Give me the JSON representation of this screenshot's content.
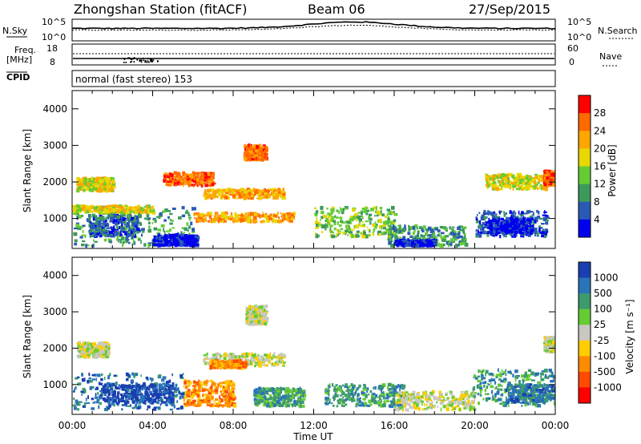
{
  "header": {
    "station": "Zhongshan Station (fitACF)",
    "beam": "Beam 06",
    "date": "27/Sep/2015",
    "mode": "normal (fast stereo) 153"
  },
  "top_panels": {
    "nsky_label": "N.Sky",
    "nsky_ticks": [
      "10^5",
      "10^0"
    ],
    "nsearch_label": "N.Search",
    "nsearch_ticks": [
      "10^5",
      "10^0"
    ],
    "freq_label_1": "Freq.",
    "freq_label_2": "[MHz]",
    "freq_ticks": [
      "18",
      "8"
    ],
    "nave_label": "Nave",
    "nave_ticks": [
      "60",
      "0"
    ],
    "cpid_label": "CPID"
  },
  "chart_data": [
    {
      "type": "heatmap",
      "panel": "power",
      "ylabel": "Slant Range [km]",
      "xlabel": "",
      "colorbar_label": "Power [dB]",
      "ylim": [
        180,
        4500
      ],
      "xlim": [
        0,
        24
      ],
      "yticks": [
        "1000",
        "2000",
        "3000",
        "4000"
      ],
      "colorbar_ticks": [
        "28",
        "24",
        "20",
        "16",
        "12",
        "8",
        "4"
      ],
      "colorbar_colors": [
        "#ff0000",
        "#ff6a00",
        "#ffa500",
        "#e8d800",
        "#66cc33",
        "#3c9a5c",
        "#2a5ab4",
        "#0000ee"
      ],
      "regions": [
        {
          "t0": 0.0,
          "t1": 6.0,
          "r0": 250,
          "r1": 1300,
          "level": 5
        },
        {
          "t0": 4.0,
          "t1": 6.2,
          "r0": 250,
          "r1": 550,
          "level": 7
        },
        {
          "t0": 0.8,
          "t1": 3.2,
          "r0": 500,
          "r1": 1100,
          "level": 6
        },
        {
          "t0": 0.0,
          "t1": 4.0,
          "r0": 1150,
          "r1": 1350,
          "level": 3
        },
        {
          "t0": 6.0,
          "t1": 11.0,
          "r0": 900,
          "r1": 1150,
          "level": 2
        },
        {
          "t0": 6.5,
          "t1": 10.5,
          "r0": 1550,
          "r1": 1800,
          "level": 2
        },
        {
          "t0": 0.2,
          "t1": 2.0,
          "r0": 1750,
          "r1": 2100,
          "level": 3
        },
        {
          "t0": 4.5,
          "t1": 7.0,
          "r0": 1900,
          "r1": 2250,
          "level": 1
        },
        {
          "t0": 8.5,
          "t1": 9.6,
          "r0": 2600,
          "r1": 3000,
          "level": 1
        },
        {
          "t0": 12.0,
          "t1": 16.0,
          "r0": 500,
          "r1": 1300,
          "level": 4
        },
        {
          "t0": 15.6,
          "t1": 19.5,
          "r0": 250,
          "r1": 800,
          "level": 5
        },
        {
          "t0": 16.0,
          "t1": 18.0,
          "r0": 250,
          "r1": 400,
          "level": 7
        },
        {
          "t0": 20.0,
          "t1": 23.6,
          "r0": 500,
          "r1": 1200,
          "level": 6
        },
        {
          "t0": 20.6,
          "t1": 22.8,
          "r0": 600,
          "r1": 1000,
          "level": 7
        },
        {
          "t0": 20.5,
          "t1": 23.5,
          "r0": 1800,
          "r1": 2200,
          "level": 3
        },
        {
          "t0": 23.4,
          "t1": 24.0,
          "r0": 1900,
          "r1": 2300,
          "level": 1
        }
      ]
    },
    {
      "type": "heatmap",
      "panel": "velocity",
      "ylabel": "Slant Range [km]",
      "xlabel": "Time UT",
      "colorbar_label": "Velocity [m s⁻¹]",
      "ylim": [
        180,
        4500
      ],
      "xlim": [
        0,
        24
      ],
      "xticks": [
        "00:00",
        "04:00",
        "08:00",
        "12:00",
        "16:00",
        "20:00",
        "00:00"
      ],
      "yticks": [
        "1000",
        "2000",
        "3000",
        "4000"
      ],
      "colorbar_ticks": [
        "1000",
        "500",
        "100",
        "25",
        "-25",
        "-100",
        "-500",
        "-1000"
      ],
      "colorbar_colors": [
        "#1a3fb0",
        "#2a74b8",
        "#3c9a6c",
        "#66cc33",
        "#c8c8c0",
        "#ffcc00",
        "#ff8c00",
        "#ff4a00",
        "#ff0000"
      ],
      "regions": [
        {
          "t0": 0.0,
          "t1": 5.5,
          "r0": 300,
          "r1": 1300,
          "level": 1
        },
        {
          "t0": 1.5,
          "t1": 5.0,
          "r0": 500,
          "r1": 1000,
          "level": 0
        },
        {
          "t0": 5.5,
          "t1": 8.0,
          "r0": 400,
          "r1": 1100,
          "level": 6
        },
        {
          "t0": 6.5,
          "t1": 10.5,
          "r0": 1500,
          "r1": 1850,
          "level": 4
        },
        {
          "t0": 6.8,
          "t1": 8.6,
          "r0": 1450,
          "r1": 1650,
          "level": 6
        },
        {
          "t0": 0.2,
          "t1": 1.8,
          "r0": 1750,
          "r1": 2150,
          "level": 4
        },
        {
          "t0": 8.6,
          "t1": 9.6,
          "r0": 2650,
          "r1": 3150,
          "level": 4
        },
        {
          "t0": 9.0,
          "t1": 11.5,
          "r0": 400,
          "r1": 900,
          "level": 2
        },
        {
          "t0": 12.5,
          "t1": 16.5,
          "r0": 400,
          "r1": 1000,
          "level": 2
        },
        {
          "t0": 16.0,
          "t1": 20.0,
          "r0": 300,
          "r1": 800,
          "level": 4
        },
        {
          "t0": 19.8,
          "t1": 24.0,
          "r0": 400,
          "r1": 1400,
          "level": 2
        },
        {
          "t0": 21.5,
          "t1": 24.0,
          "r0": 500,
          "r1": 1000,
          "level": 1
        },
        {
          "t0": 23.4,
          "t1": 24.0,
          "r0": 1900,
          "r1": 2300,
          "level": 4
        }
      ]
    }
  ]
}
